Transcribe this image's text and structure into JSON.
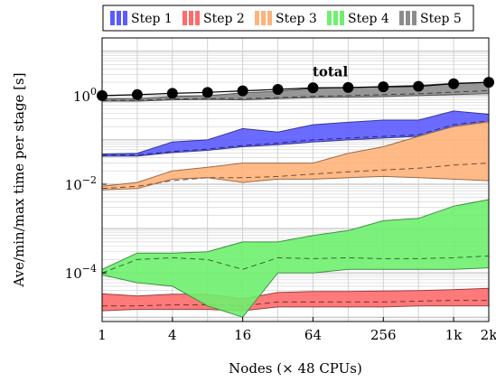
{
  "chart_data": {
    "type": "area",
    "xlabel": "Nodes (× 48 CPUs)",
    "ylabel": "Ave/min/max time per stage [s]",
    "xscale": "log2",
    "yscale": "log10",
    "xlim": [
      1,
      2048
    ],
    "ylim": [
      8e-06,
      20
    ],
    "grid": true,
    "legend_placement": "top",
    "x": [
      1,
      2,
      4,
      8,
      16,
      32,
      64,
      128,
      256,
      512,
      1024,
      2048
    ],
    "x_tick_values": [
      1,
      4,
      16,
      64,
      256,
      1024,
      2048
    ],
    "x_tick_labels": [
      "1",
      "4",
      "16",
      "64",
      "256",
      "1k",
      "2k"
    ],
    "y_tick_values": [
      0.0001,
      0.01,
      1
    ],
    "y_tick_labels": [
      "10^−4",
      "10^−2",
      "10^0"
    ],
    "y_tick_base": "10",
    "y_tick_exponents": [
      "−4",
      "−2",
      "0"
    ],
    "annotations": [
      {
        "text": "total"
      }
    ],
    "series": [
      {
        "name": "Step 1",
        "color": "#5b5bff",
        "ave": [
          0.045,
          0.046,
          0.055,
          0.062,
          0.075,
          0.085,
          0.1,
          0.11,
          0.12,
          0.13,
          0.22,
          0.27
        ],
        "min": [
          0.043,
          0.043,
          0.052,
          0.058,
          0.07,
          0.078,
          0.09,
          0.1,
          0.11,
          0.12,
          0.2,
          0.24
        ],
        "max": [
          0.048,
          0.05,
          0.09,
          0.1,
          0.18,
          0.15,
          0.22,
          0.25,
          0.28,
          0.28,
          0.45,
          0.38
        ]
      },
      {
        "name": "Step 2",
        "color": "#ff6b6b",
        "ave": [
          1.8e-05,
          1.8e-05,
          1.9e-05,
          1.9e-05,
          1.8e-05,
          2.2e-05,
          2.2e-05,
          2.2e-05,
          2.2e-05,
          2.3e-05,
          2.4e-05,
          2.4e-05
        ],
        "min": [
          1.4e-05,
          1.5e-05,
          1.5e-05,
          1.5e-05,
          1.4e-05,
          1.7e-05,
          1.7e-05,
          1.7e-05,
          1.7e-05,
          1.8e-05,
          1.8e-05,
          1.8e-05
        ],
        "max": [
          3.4e-05,
          3e-05,
          3.3e-05,
          3.3e-05,
          2.6e-05,
          3.6e-05,
          3.8e-05,
          3.8e-05,
          3.9e-05,
          4e-05,
          4.2e-05,
          4.5e-05
        ]
      },
      {
        "name": "Step 3",
        "color": "#ffb27a",
        "ave": [
          0.008,
          0.009,
          0.012,
          0.014,
          0.014,
          0.015,
          0.017,
          0.019,
          0.021,
          0.023,
          0.027,
          0.03
        ],
        "min": [
          0.0075,
          0.008,
          0.013,
          0.014,
          0.011,
          0.013,
          0.013,
          0.014,
          0.015,
          0.014,
          0.013,
          0.012
        ],
        "max": [
          0.009,
          0.011,
          0.02,
          0.024,
          0.03,
          0.03,
          0.03,
          0.05,
          0.07,
          0.12,
          0.2,
          0.26
        ]
      },
      {
        "name": "Step 4",
        "color": "#6ef06e",
        "ave": [
          0.0001,
          0.0002,
          0.00022,
          0.0002,
          0.00012,
          0.00022,
          0.00021,
          0.00022,
          0.00021,
          0.00021,
          0.00022,
          0.00024
        ],
        "min": [
          9e-05,
          6e-05,
          5e-05,
          1.8e-05,
          1e-05,
          0.0001,
          0.0001,
          0.00012,
          0.00012,
          0.00012,
          0.00012,
          0.00013
        ],
        "max": [
          0.00012,
          0.00028,
          0.00028,
          0.0003,
          0.0005,
          0.0005,
          0.0007,
          0.0009,
          0.0015,
          0.0017,
          0.0032,
          0.0045
        ]
      },
      {
        "name": "Step 5",
        "color": "#8c8c8c",
        "ave": [
          0.78,
          0.78,
          0.84,
          0.86,
          0.86,
          0.9,
          0.96,
          1.0,
          1.05,
          1.1,
          1.2,
          1.3
        ],
        "min": [
          0.75,
          0.75,
          0.8,
          0.82,
          0.8,
          0.85,
          0.9,
          0.92,
          0.95,
          1.0,
          1.05,
          1.1
        ],
        "max": [
          0.85,
          0.85,
          0.95,
          1.0,
          1.15,
          1.25,
          1.45,
          1.5,
          1.6,
          1.7,
          1.9,
          2.0
        ]
      }
    ],
    "total": {
      "name": "total",
      "values": [
        1.0,
        1.05,
        1.12,
        1.18,
        1.28,
        1.38,
        1.5,
        1.52,
        1.58,
        1.62,
        1.85,
        2.0
      ]
    }
  }
}
